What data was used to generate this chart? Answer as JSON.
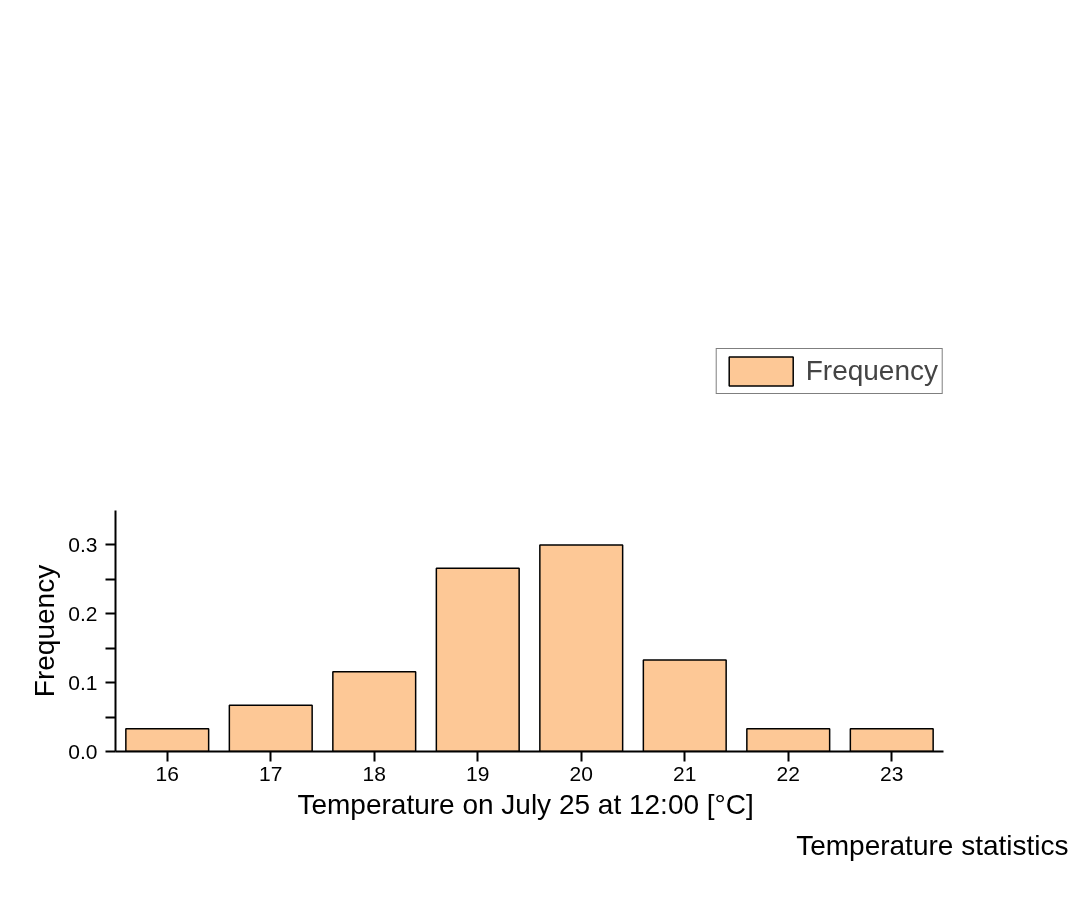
{
  "chart_data": {
    "type": "bar",
    "xlabel": "Temperature on July 25 at 12:00  [°C]",
    "ylabel": "Frequency",
    "categories": [
      "16",
      "17",
      "18",
      "19",
      "20",
      "21",
      "22",
      "23"
    ],
    "series": [
      {
        "name": "Frequency",
        "color": "#fdc896",
        "values": [
          0.033,
          0.067,
          0.116,
          0.266,
          0.3,
          0.133,
          0.033,
          0.033
        ]
      }
    ],
    "ylim": [
      0,
      0.35
    ],
    "yticks": [
      {
        "value": 0,
        "label": "0.0"
      },
      {
        "value": 0.05,
        "label": null
      },
      0.1,
      {
        "value": 0.15,
        "label": null
      },
      0.2,
      {
        "value": 0.25,
        "label": null
      },
      0.3
    ],
    "grid": false,
    "legend": "top right",
    "annotations": [
      "Temperature statistics"
    ]
  }
}
